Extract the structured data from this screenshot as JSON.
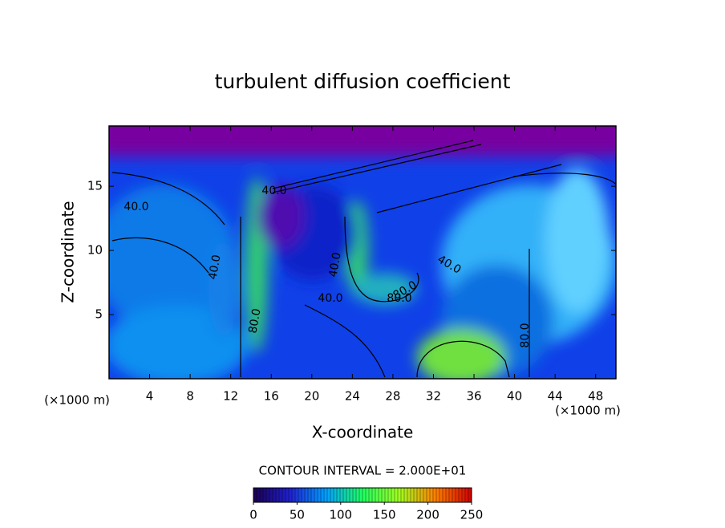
{
  "chart_data": {
    "type": "contour",
    "title": "turbulent diffusion coefficient",
    "x_label": "X-coordinate",
    "y_label": "Z-coordinate",
    "x_unit": "(×1000 m)",
    "y_unit": "(×1000 m)",
    "xlim": [
      0,
      50
    ],
    "xticks": [
      4,
      8,
      12,
      16,
      20,
      24,
      28,
      32,
      36,
      40,
      44,
      48
    ],
    "ylim": [
      0,
      19.7
    ],
    "yticks": [
      5,
      10,
      15
    ],
    "contour_labels": [
      "40.0",
      "40.0",
      "40.0",
      "40.0",
      "40.0",
      "40.0",
      "80.0",
      "80.0",
      "80.0",
      "80.0"
    ],
    "contour_interval": "CONTOUR INTERVAL = 2.000E+01",
    "colorbar": {
      "lim": [
        0,
        250
      ],
      "ticks": [
        0,
        50,
        100,
        150,
        200,
        250
      ],
      "colors": [
        "#1a0050",
        "#2020d0",
        "#00a0ff",
        "#20ff60",
        "#a0ff20",
        "#ff8000",
        "#d00000"
      ]
    }
  }
}
